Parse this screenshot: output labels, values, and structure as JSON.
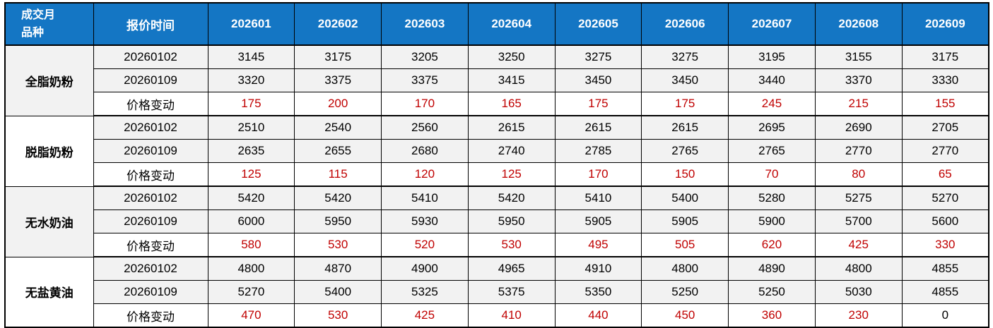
{
  "colors": {
    "header_bg": "#1476C4",
    "header_text": "#FFFFFF",
    "body_text": "#000000",
    "change_text": "#C00000",
    "stripe_bg": "#F2F2F2",
    "white_bg": "#FFFFFF",
    "border": "#000000"
  },
  "chart_data": {
    "type": "table",
    "corner": {
      "line1": "成交月",
      "line2": "品种"
    },
    "quote_time_header": "报价时间",
    "months": [
      "202601",
      "202602",
      "202603",
      "202604",
      "202605",
      "202606",
      "202607",
      "202608",
      "202609"
    ],
    "groups": [
      {
        "name": "全脂奶粉",
        "rows": [
          {
            "label": "20260102",
            "kind": "price",
            "values": [
              "3145",
              "3175",
              "3205",
              "3250",
              "3275",
              "3275",
              "3195",
              "3155",
              "3175"
            ]
          },
          {
            "label": "20260109",
            "kind": "price",
            "values": [
              "3320",
              "3375",
              "3375",
              "3415",
              "3450",
              "3450",
              "3440",
              "3370",
              "3330"
            ]
          },
          {
            "label": "价格变动",
            "kind": "change",
            "values": [
              "175",
              "200",
              "170",
              "165",
              "175",
              "175",
              "245",
              "215",
              "155"
            ]
          }
        ]
      },
      {
        "name": "脱脂奶粉",
        "rows": [
          {
            "label": "20260102",
            "kind": "price",
            "values": [
              "2510",
              "2540",
              "2560",
              "2615",
              "2615",
              "2615",
              "2695",
              "2690",
              "2705"
            ]
          },
          {
            "label": "20260109",
            "kind": "price",
            "values": [
              "2635",
              "2655",
              "2680",
              "2740",
              "2785",
              "2765",
              "2765",
              "2770",
              "2770"
            ]
          },
          {
            "label": "价格变动",
            "kind": "change",
            "values": [
              "125",
              "115",
              "120",
              "125",
              "170",
              "150",
              "70",
              "80",
              "65"
            ]
          }
        ]
      },
      {
        "name": "无水奶油",
        "rows": [
          {
            "label": "20260102",
            "kind": "price",
            "values": [
              "5420",
              "5420",
              "5410",
              "5420",
              "5410",
              "5400",
              "5280",
              "5275",
              "5270"
            ]
          },
          {
            "label": "20260109",
            "kind": "price",
            "values": [
              "6000",
              "5950",
              "5930",
              "5950",
              "5905",
              "5905",
              "5900",
              "5700",
              "5600"
            ]
          },
          {
            "label": "价格变动",
            "kind": "change",
            "values": [
              "580",
              "530",
              "520",
              "530",
              "495",
              "505",
              "620",
              "425",
              "330"
            ]
          }
        ]
      },
      {
        "name": "无盐黄油",
        "rows": [
          {
            "label": "20260102",
            "kind": "price",
            "values": [
              "4800",
              "4870",
              "4900",
              "4965",
              "4910",
              "4800",
              "4890",
              "4800",
              "4855"
            ]
          },
          {
            "label": "20260109",
            "kind": "price",
            "values": [
              "5270",
              "5400",
              "5325",
              "5375",
              "5350",
              "5250",
              "5250",
              "5030",
              "4855"
            ]
          },
          {
            "label": "价格变动",
            "kind": "change",
            "values": [
              "470",
              "530",
              "425",
              "410",
              "440",
              "450",
              "360",
              "230",
              "0"
            ]
          }
        ]
      }
    ]
  }
}
